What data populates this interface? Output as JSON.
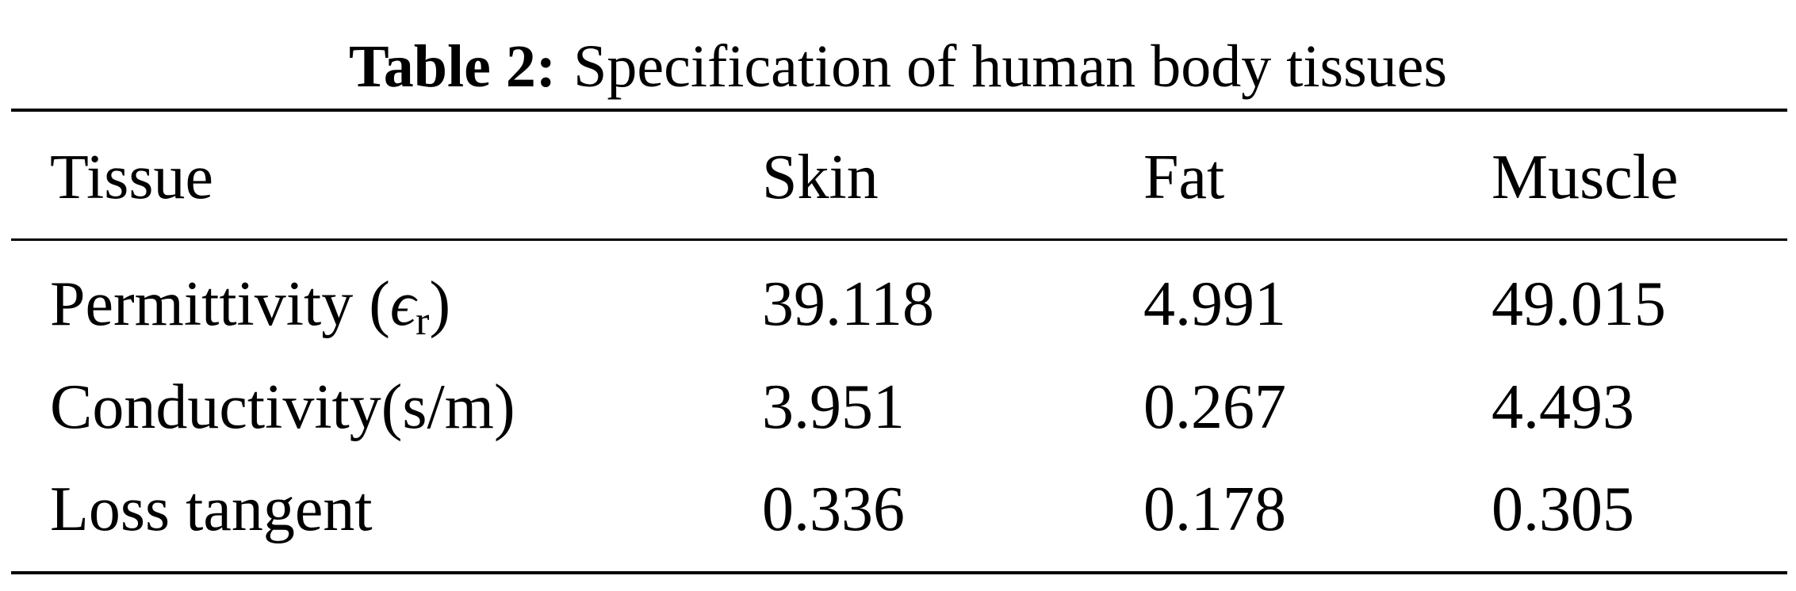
{
  "title": {
    "label": "Table 2:",
    "text": "Specification of human body tissues"
  },
  "table": {
    "header": [
      "Tissue",
      "Skin",
      "Fat",
      "Muscle"
    ],
    "rows": [
      {
        "label": {
          "before": "Permittivity (",
          "symbol": "ϵ",
          "subscript": "r",
          "after": ")"
        },
        "cells": [
          "39.118",
          "4.991",
          "49.015"
        ]
      },
      {
        "label": "Conductivity(s/m)",
        "cells": [
          "3.951",
          "0.267",
          "4.493"
        ]
      },
      {
        "label": "Loss tangent",
        "cells": [
          "0.336",
          "0.178",
          "0.305"
        ]
      }
    ]
  }
}
